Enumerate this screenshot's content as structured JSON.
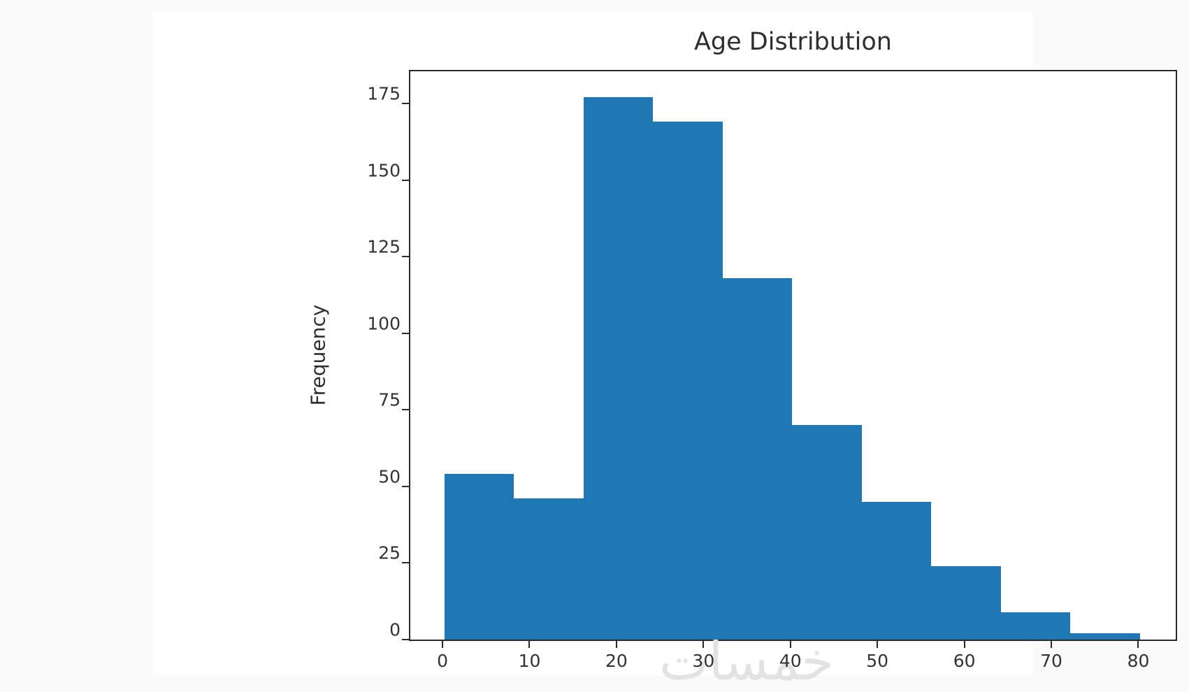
{
  "watermark": {
    "text": "خمسات"
  },
  "chart_data": {
    "type": "histogram",
    "title": "Age Distribution",
    "xlabel": "",
    "ylabel": "Frequency",
    "series_color": "#1f77b4",
    "bin_edges": [
      0.2,
      8.2,
      16.2,
      24.2,
      32.2,
      40.2,
      48.2,
      56.2,
      64.2,
      72.2,
      80.2
    ],
    "frequencies": [
      54,
      46,
      177,
      169,
      118,
      70,
      45,
      24,
      9,
      2
    ],
    "xticks": [
      0,
      10,
      20,
      30,
      40,
      50,
      60,
      70,
      80
    ],
    "yticks": [
      0,
      25,
      50,
      75,
      100,
      125,
      150,
      175
    ],
    "xlim": [
      -3.7,
      84.3
    ],
    "ylim": [
      0,
      185.5
    ],
    "grid": false,
    "legend": null
  }
}
